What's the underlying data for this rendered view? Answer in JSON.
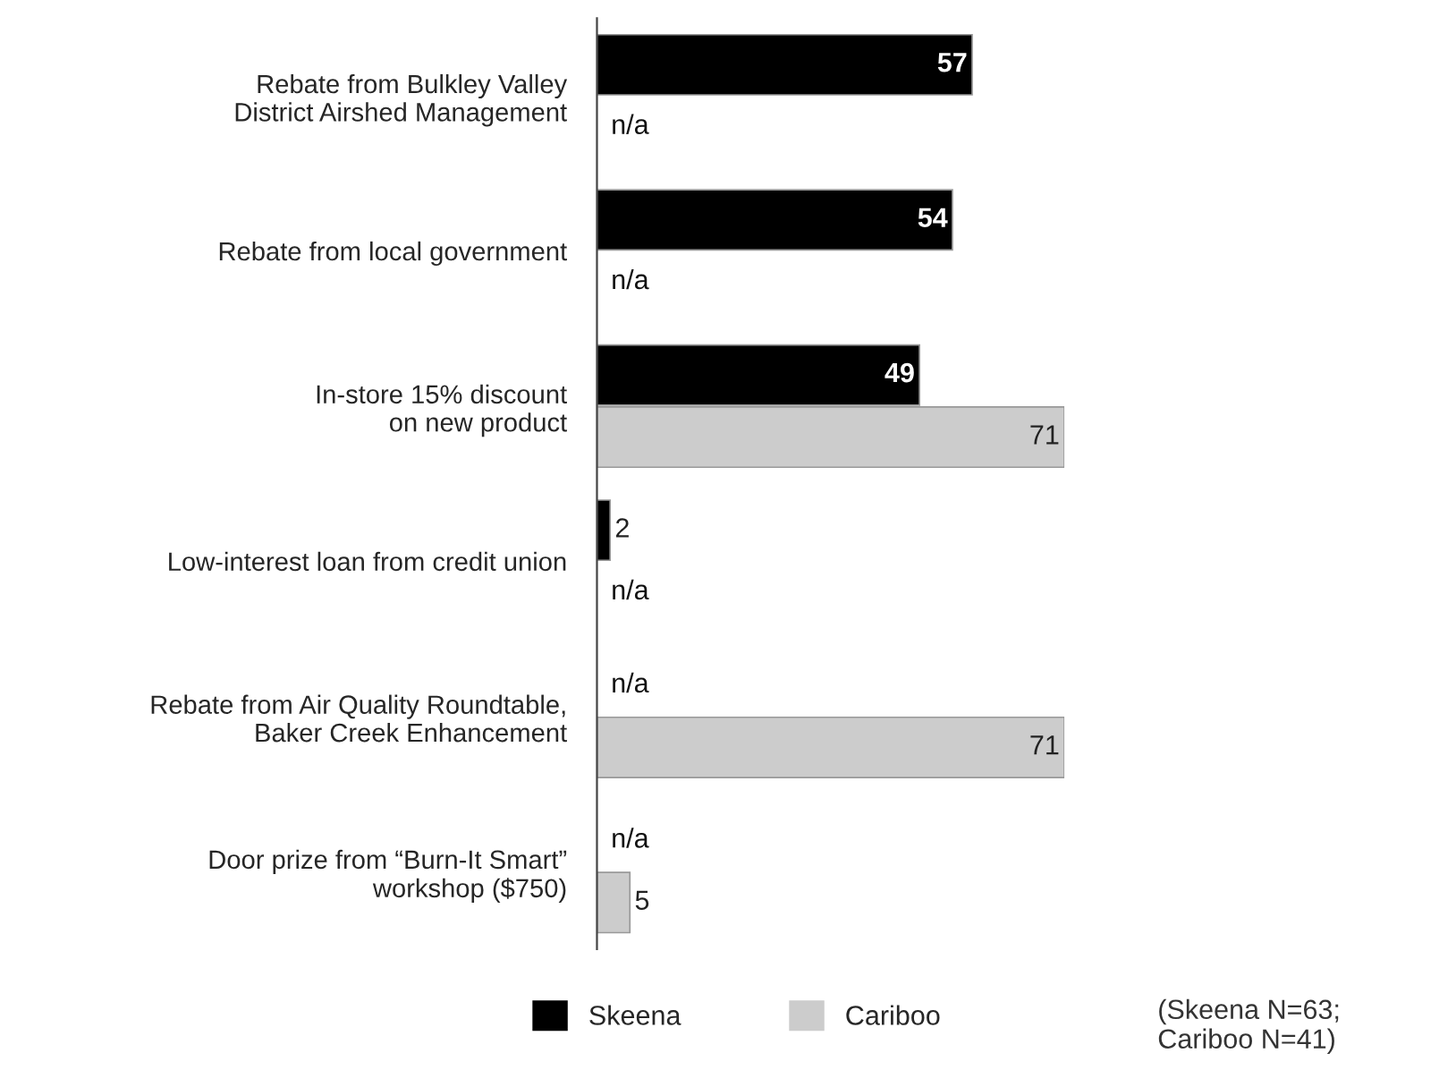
{
  "chart_data": {
    "type": "bar",
    "orientation": "horizontal",
    "categories": [
      "Rebate from Bulkley Valley\nDistrict Airshed Management",
      "Rebate from local government",
      "In-store 15% discount\non new product",
      "Low-interest loan from credit union",
      "Rebate from Air Quality Roundtable,\nBaker Creek Enhancement",
      "Door prize from “Burn-It Smart”\nworkshop ($750)"
    ],
    "series": [
      {
        "name": "Skeena",
        "color": "#000000",
        "values": [
          57,
          54,
          49,
          2,
          null,
          null
        ],
        "value_labels": [
          "57",
          "54",
          "49",
          "2",
          "n/a",
          "n/a"
        ]
      },
      {
        "name": "Cariboo",
        "color": "#cccccc",
        "values": [
          null,
          null,
          71,
          null,
          71,
          5
        ],
        "value_labels": [
          "n/a",
          "n/a",
          "71",
          "n/a",
          "71",
          "5"
        ]
      }
    ],
    "xlim": [
      0,
      71
    ],
    "tick_labels": "y",
    "legend": "bottom",
    "grid": false,
    "annotations": [
      "(Skeena N=63;\nCariboo N=41)"
    ]
  }
}
